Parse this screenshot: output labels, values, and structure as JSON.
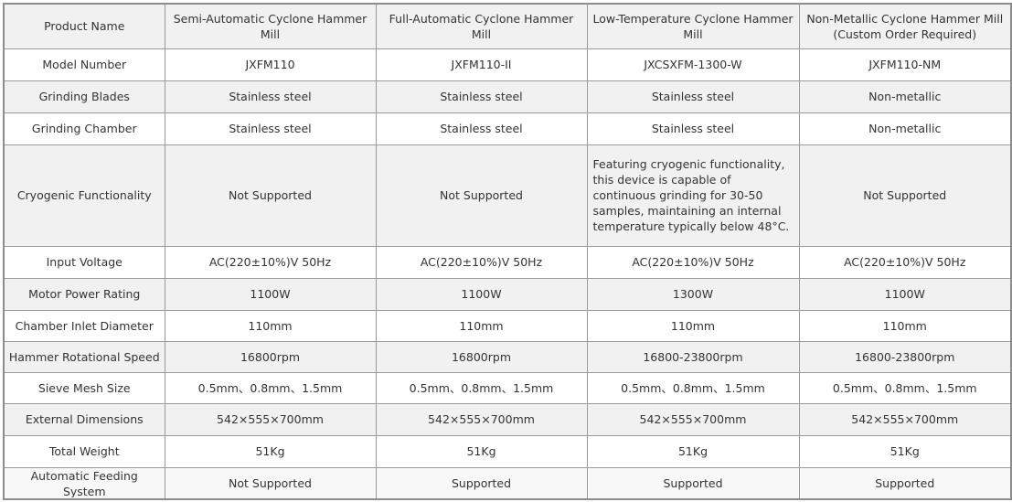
{
  "columns": [
    "Product Name",
    "Semi-Automatic Cyclone Hammer Mill",
    "Full-Automatic Cyclone Hammer Mill",
    "Low-Temperature Cyclone Hammer Mill",
    "Non-Metallic Cyclone Hammer Mill (Custom Order Required)"
  ],
  "rows": [
    {
      "label": "Model Number",
      "values": [
        "JXFM110",
        "JXFM110-II",
        "JXCSXFM-1300-W",
        "JXFM110-NM"
      ]
    },
    {
      "label": "Grinding Blades",
      "values": [
        "Stainless steel",
        "Stainless steel",
        "Stainless steel",
        "Non-metallic"
      ]
    },
    {
      "label": "Grinding Chamber",
      "values": [
        "Stainless steel",
        "Stainless steel",
        "Stainless steel",
        "Non-metallic"
      ]
    },
    {
      "label": "Cryogenic Functionality",
      "values": [
        "Not Supported",
        "Not Supported",
        "Featuring cryogenic functionality, this device is capable of continuous grinding for 30-50 samples, maintaining an internal temperature typically below 48°C.",
        "Not Supported"
      ]
    },
    {
      "label": "Input Voltage",
      "values": [
        "AC(220±10%)V 50Hz",
        "AC(220±10%)V 50Hz",
        "AC(220±10%)V 50Hz",
        "AC(220±10%)V 50Hz"
      ]
    },
    {
      "label": "Motor Power Rating",
      "values": [
        "1100W",
        "1100W",
        "1300W",
        "1100W"
      ]
    },
    {
      "label": "Chamber Inlet Diameter",
      "values": [
        "110mm",
        "110mm",
        "110mm",
        "110mm"
      ]
    },
    {
      "label": "Hammer Rotational Speed",
      "values": [
        "16800rpm",
        "16800rpm",
        "16800-23800rpm",
        "16800-23800rpm"
      ]
    },
    {
      "label": "Sieve Mesh Size",
      "values": [
        "0.5mm、0.8mm、1.5mm",
        "0.5mm、0.8mm、1.5mm",
        "0.5mm、0.8mm、1.5mm",
        "0.5mm、0.8mm、1.5mm"
      ]
    },
    {
      "label": "External Dimensions",
      "values": [
        "542×555×700mm",
        "542×555×700mm",
        "542×555×700mm",
        "542×555×700mm"
      ]
    },
    {
      "label": "Total Weight",
      "values": [
        "51Kg",
        "51Kg",
        "51Kg",
        "51Kg"
      ]
    },
    {
      "label": "Automatic Feeding System",
      "values": [
        "Not Supported",
        "Supported",
        "Supported",
        "Supported"
      ]
    }
  ]
}
